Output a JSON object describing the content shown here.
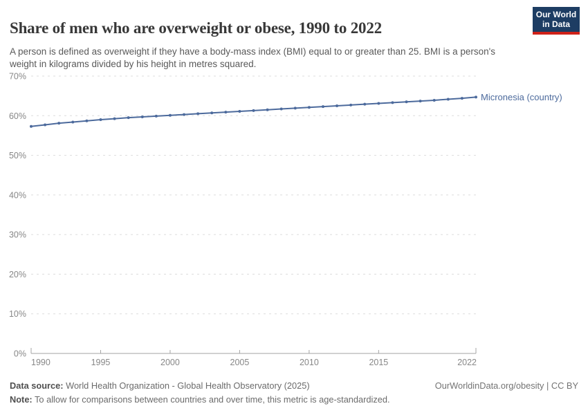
{
  "header": {
    "title": "Share of men who are overweight or obese, 1990 to 2022",
    "subtitle": "A person is defined as overweight if they have a body-mass index (BMI) equal to or greater than 25. BMI is a person's weight in kilograms divided by his height in metres squared.",
    "logo": {
      "line1": "Our World",
      "line2": "in Data"
    }
  },
  "chart_data": {
    "type": "line",
    "title": "Share of men who are overweight or obese, 1990 to 2022",
    "xlabel": "",
    "ylabel": "",
    "ylim": [
      0,
      70
    ],
    "grid": "dashed-horizontal",
    "legend_position": "end-of-line-label",
    "x": [
      1990,
      1991,
      1992,
      1993,
      1994,
      1995,
      1996,
      1997,
      1998,
      1999,
      2000,
      2001,
      2002,
      2003,
      2004,
      2005,
      2006,
      2007,
      2008,
      2009,
      2010,
      2011,
      2012,
      2013,
      2014,
      2015,
      2016,
      2017,
      2018,
      2019,
      2020,
      2021,
      2022
    ],
    "series": [
      {
        "name": "Micronesia (country)",
        "color": "#4c6a9c",
        "values": [
          57.3,
          57.7,
          58.1,
          58.4,
          58.7,
          59.0,
          59.25,
          59.5,
          59.7,
          59.9,
          60.1,
          60.3,
          60.5,
          60.7,
          60.9,
          61.1,
          61.3,
          61.5,
          61.7,
          61.9,
          62.1,
          62.3,
          62.5,
          62.7,
          62.9,
          63.1,
          63.3,
          63.5,
          63.7,
          63.9,
          64.15,
          64.4,
          64.7
        ]
      }
    ],
    "yticks": [
      {
        "value": 0,
        "label": "0%"
      },
      {
        "value": 10,
        "label": "10%"
      },
      {
        "value": 20,
        "label": "20%"
      },
      {
        "value": 30,
        "label": "30%"
      },
      {
        "value": 40,
        "label": "40%"
      },
      {
        "value": 50,
        "label": "50%"
      },
      {
        "value": 60,
        "label": "60%"
      },
      {
        "value": 70,
        "label": "70%"
      }
    ],
    "xticks": [
      1990,
      1995,
      2000,
      2005,
      2010,
      2015,
      2022
    ]
  },
  "colors": {
    "series_blue": "#4c6a9c",
    "grid": "#dcdcdc",
    "axis": "#a3a3a3",
    "tick_text": "#878787",
    "logo_navy": "#1d3d63",
    "logo_red": "#cf2219"
  },
  "footer": {
    "datasource_label": "Data source:",
    "datasource_text": "World Health Organization - Global Health Observatory (2025)",
    "note_label": "Note:",
    "note_text": "To allow for comparisons between countries and over time, this metric is age-standardized.",
    "link": "OurWorldinData.org/obesity | CC BY"
  }
}
